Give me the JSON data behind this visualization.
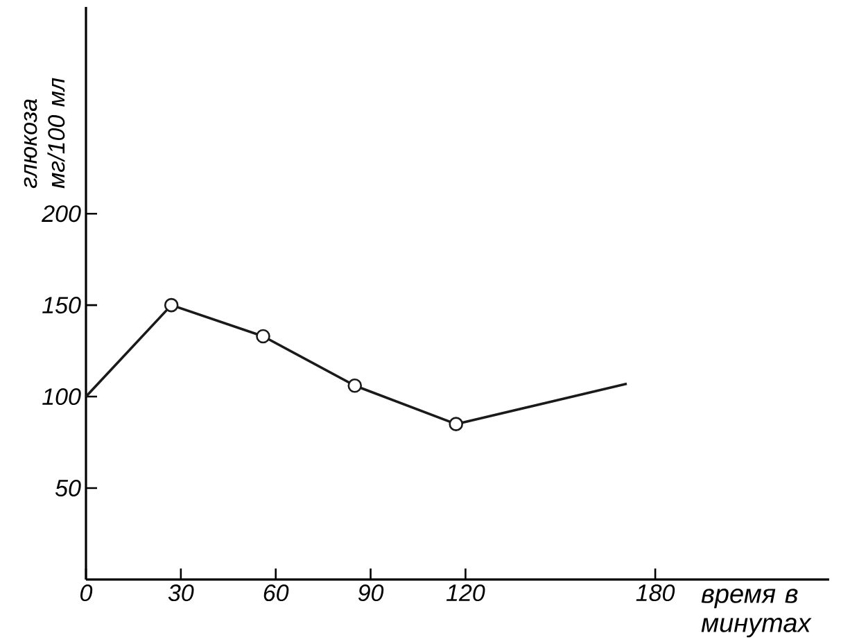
{
  "chart_data": {
    "type": "line",
    "xlabel": "время в минутах",
    "ylabel": "глюкоза мг/100 мл",
    "xlim": [
      0,
      235
    ],
    "ylim": [
      0,
      313
    ],
    "xticks": [
      0,
      30,
      60,
      90,
      120,
      180
    ],
    "yticks": [
      50,
      100,
      150,
      200
    ],
    "grid": false,
    "series": [
      {
        "color": "#1a1a1a",
        "marker": "none",
        "x": [
          0,
          27,
          56,
          85,
          117,
          171
        ],
        "values": [
          100,
          150,
          133,
          106,
          85,
          107
        ]
      },
      {
        "type": "scatter",
        "color": "#1a1a1a",
        "marker": "circle",
        "x": [
          27,
          56,
          85,
          117
        ],
        "values": [
          150,
          133,
          106,
          85
        ]
      }
    ]
  }
}
